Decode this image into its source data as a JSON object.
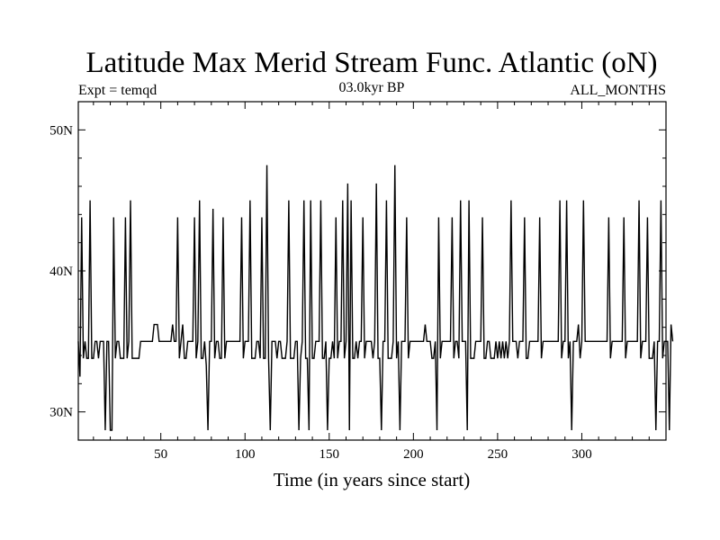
{
  "chart_data": {
    "type": "line",
    "title": "Latitude Max Merid Stream Func. Atlantic (oN)",
    "subtitle_left": "Expt = temqd",
    "subtitle_center": "03.0kyr BP",
    "subtitle_right": "ALL_MONTHS",
    "xlabel": "Time (in years since start)",
    "ylabel": "",
    "xlim": [
      1,
      350
    ],
    "ylim": [
      28,
      52
    ],
    "x_ticks": [
      50,
      100,
      150,
      200,
      250,
      300
    ],
    "y_ticks": [
      30,
      40,
      50
    ],
    "y_tick_labels": [
      "30N",
      "40N",
      "50N"
    ],
    "series": [
      {
        "name": "Latitude Max Merid Stream Func.",
        "x_start": 1,
        "x_step": 1,
        "values": [
          35.0,
          32.5,
          43.8,
          33.8,
          35.0,
          33.8,
          33.8,
          45.0,
          33.8,
          33.8,
          35.0,
          35.0,
          33.8,
          35.0,
          35.0,
          35.0,
          28.7,
          35.0,
          35.0,
          28.7,
          28.7,
          43.8,
          33.8,
          35.0,
          35.0,
          33.8,
          33.8,
          33.8,
          43.8,
          33.8,
          35.0,
          45.0,
          33.8,
          33.8,
          33.8,
          33.8,
          33.8,
          35.0,
          35.0,
          35.0,
          35.0,
          35.0,
          35.0,
          35.0,
          35.0,
          36.2,
          36.2,
          36.2,
          35.0,
          35.0,
          35.0,
          35.0,
          35.0,
          35.0,
          35.0,
          35.0,
          36.2,
          35.0,
          35.0,
          43.8,
          33.8,
          35.0,
          36.2,
          33.8,
          33.8,
          35.0,
          35.0,
          35.0,
          35.0,
          43.8,
          33.8,
          35.0,
          45.0,
          33.8,
          33.8,
          35.0,
          33.3,
          28.7,
          35.0,
          35.0,
          44.4,
          33.8,
          35.0,
          35.0,
          33.8,
          33.8,
          43.8,
          33.8,
          35.0,
          35.0,
          35.0,
          35.0,
          35.0,
          35.0,
          35.0,
          35.0,
          35.0,
          43.8,
          33.8,
          35.0,
          35.0,
          35.0,
          45.0,
          33.8,
          33.8,
          33.8,
          35.0,
          35.0,
          33.8,
          43.8,
          33.8,
          33.8,
          47.5,
          33.8,
          28.7,
          35.0,
          35.0,
          35.0,
          33.8,
          35.0,
          35.0,
          33.8,
          33.8,
          33.8,
          35.0,
          45.0,
          33.8,
          33.8,
          33.8,
          35.0,
          35.0,
          28.7,
          33.8,
          35.0,
          45.0,
          33.8,
          33.8,
          28.7,
          45.0,
          33.8,
          33.8,
          35.0,
          35.0,
          35.0,
          45.0,
          33.8,
          33.8,
          35.0,
          28.7,
          33.8,
          33.8,
          35.0,
          33.8,
          43.8,
          33.8,
          35.0,
          35.0,
          45.0,
          33.8,
          35.0,
          46.2,
          28.7,
          45.0,
          33.8,
          33.8,
          35.0,
          33.8,
          35.0,
          35.0,
          43.8,
          33.8,
          35.0,
          35.0,
          35.0,
          35.0,
          33.8,
          35.0,
          46.2,
          33.8,
          33.8,
          28.7,
          35.0,
          35.0,
          45.0,
          33.8,
          33.8,
          33.8,
          35.0,
          47.5,
          33.8,
          35.0,
          28.7,
          35.0,
          35.0,
          35.0,
          43.8,
          33.8,
          35.0,
          35.0,
          35.0,
          35.0,
          35.0,
          35.0,
          35.0,
          35.0,
          35.0,
          36.2,
          35.0,
          35.0,
          35.0,
          33.8,
          33.8,
          35.0,
          28.7,
          43.8,
          33.8,
          35.0,
          35.0,
          35.0,
          35.0,
          35.0,
          35.0,
          43.8,
          33.8,
          35.0,
          35.0,
          33.8,
          45.0,
          35.0,
          35.0,
          35.0,
          28.7,
          45.0,
          33.8,
          33.8,
          33.8,
          35.0,
          35.0,
          35.0,
          35.0,
          43.8,
          33.8,
          33.8,
          35.0,
          35.0,
          33.8,
          33.8,
          33.8,
          35.0,
          33.8,
          35.0,
          33.8,
          35.0,
          33.8,
          35.0,
          33.8,
          35.0,
          45.0,
          35.0,
          35.0,
          35.0,
          33.8,
          35.0,
          35.0,
          35.0,
          43.8,
          33.8,
          33.8,
          35.0,
          35.0,
          35.0,
          35.0,
          35.0,
          35.0,
          43.8,
          33.8,
          35.0,
          35.0,
          35.0,
          35.0,
          35.0,
          35.0,
          35.0,
          35.0,
          35.0,
          35.0,
          45.0,
          33.8,
          35.0,
          35.0,
          45.0,
          33.8,
          35.0,
          28.7,
          35.0,
          35.0,
          35.0,
          36.2,
          33.8,
          35.0,
          45.0,
          35.0,
          35.0,
          35.0,
          35.0,
          35.0,
          35.0,
          35.0,
          35.0,
          35.0,
          35.0,
          35.0,
          35.0,
          35.0,
          35.0,
          43.8,
          33.8,
          35.0,
          35.0,
          35.0,
          35.0,
          35.0,
          35.0,
          35.0,
          43.8,
          33.8,
          35.0,
          35.0,
          35.0,
          35.0,
          35.0,
          35.0,
          35.0,
          45.0,
          33.8,
          35.0,
          35.0,
          35.0,
          43.8,
          33.8,
          33.8,
          33.8,
          35.0,
          28.7,
          35.0,
          35.0,
          45.0,
          33.8,
          35.0,
          35.0,
          35.0,
          28.7,
          36.2,
          35.0
        ]
      }
    ]
  }
}
